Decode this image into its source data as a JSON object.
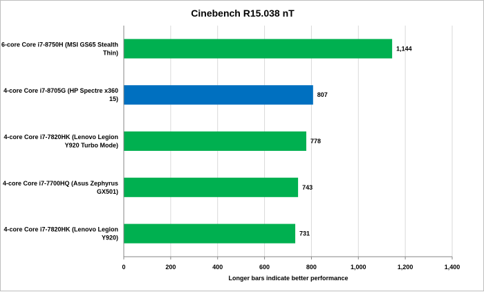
{
  "chart_data": {
    "type": "bar",
    "orientation": "horizontal",
    "title": "Cinebench R15.038 nT",
    "xlabel": "Longer bars indicate better performance",
    "ylabel": "",
    "xlim": [
      0,
      1400
    ],
    "x_ticks": [
      0,
      200,
      400,
      600,
      800,
      1000,
      1200,
      1400
    ],
    "x_tick_labels": [
      "0",
      "200",
      "400",
      "600",
      "800",
      "1,000",
      "1,200",
      "1,400"
    ],
    "grid": "vertical",
    "legend": "none",
    "categories": [
      [
        "6-core Core i7-8750H (MSI GS65 Stealth",
        "Thin)"
      ],
      [
        "4-core Core i7-8705G (HP Spectre x360",
        "15)"
      ],
      [
        "4-core Core i7-7820HK (Lenovo Legion",
        "Y920 Turbo Mode)"
      ],
      [
        "4-core Core i7-7700HQ (Asus Zephyrus",
        "GX501)"
      ],
      [
        "4-core Core i7-7820HK (Lenovo Legion",
        "Y920)"
      ]
    ],
    "values": [
      1144,
      807,
      778,
      743,
      731
    ],
    "value_labels": [
      "1,144",
      "807",
      "778",
      "743",
      "731"
    ],
    "colors": [
      "#00b050",
      "#0070c0",
      "#00b050",
      "#00b050",
      "#00b050"
    ]
  }
}
